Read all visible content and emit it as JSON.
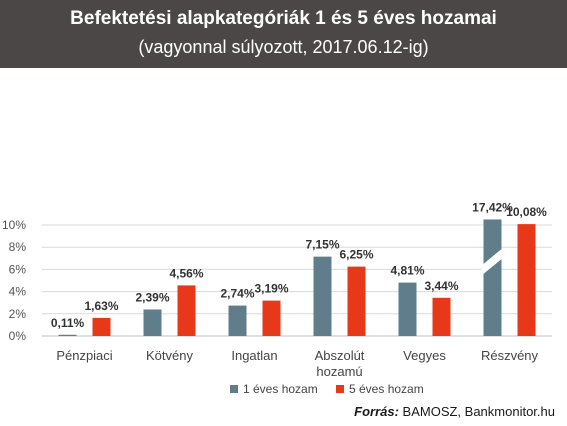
{
  "chart_data": {
    "type": "bar",
    "title": "Befektetési alapkategóriák 1 és 5 éves hozamai",
    "subtitle": "(vagyonnal súlyozott, 2017.06.12-ig)",
    "categories": [
      "Pénzpiaci",
      "Kötvény",
      "Ingatlan",
      "Abszolút hozamú",
      "Vegyes",
      "Részvény"
    ],
    "series": [
      {
        "name": "1 éves hozam",
        "color": "#607d8b",
        "values": [
          0.11,
          2.39,
          2.74,
          7.15,
          4.81,
          17.42
        ],
        "labels": [
          "0,11%",
          "2,39%",
          "2,74%",
          "7,15%",
          "4,81%",
          "17,42%"
        ]
      },
      {
        "name": "5 éves hozam",
        "color": "#e8381a",
        "values": [
          1.63,
          4.56,
          3.19,
          6.25,
          3.44,
          10.08
        ],
        "labels": [
          "1,63%",
          "4,56%",
          "3,19%",
          "6,25%",
          "3,44%",
          "10,08%"
        ]
      }
    ],
    "yticks": [
      0,
      2,
      4,
      6,
      8,
      10
    ],
    "ytick_labels": [
      "0%",
      "2%",
      "4%",
      "6%",
      "8%",
      "10%"
    ],
    "ylim": [
      0,
      10.5
    ],
    "axis_break": true,
    "grid": true,
    "legend_position": "bottom"
  },
  "source": {
    "label": "Forrás:",
    "text": " BAMOSZ,  Bankmonitor.hu"
  }
}
